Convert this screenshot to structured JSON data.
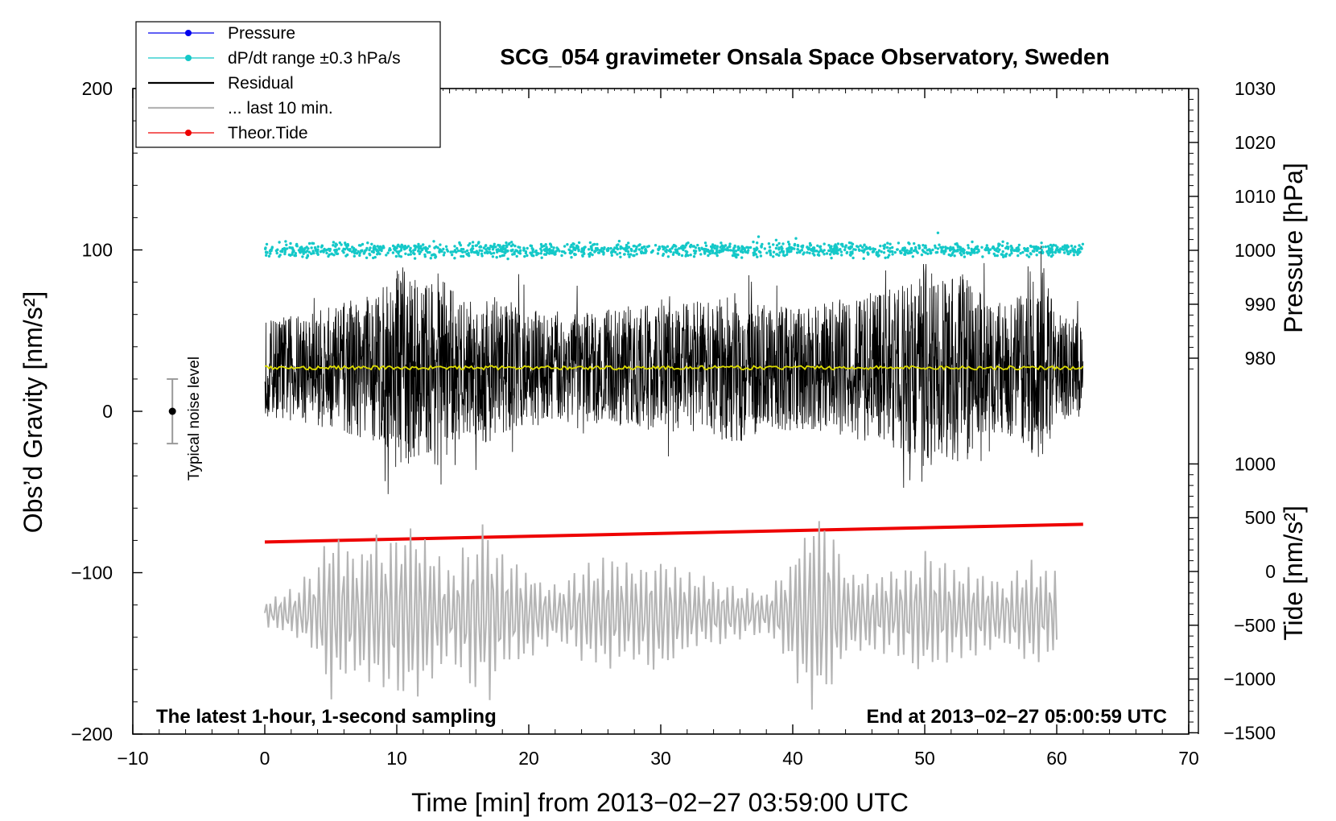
{
  "chart_data": {
    "type": "line",
    "title": "SCG_054 gravimeter Onsala Space Observatory, Sweden",
    "xlabel": "Time [min] from 2013−02−27 03:59:00 UTC",
    "ylabel_left": "Obs’d Gravity [nm/s²]",
    "ylabel_right_top": "Pressure [hPa]",
    "ylabel_right_bottom": "Tide [nm/s²]",
    "xlim": [
      -10,
      70
    ],
    "ylim": [
      -200,
      200
    ],
    "pressure_range": [
      970,
      1030
    ],
    "tide_range": [
      -1500,
      1000
    ],
    "x_ticks": [
      "−10",
      "0",
      "10",
      "20",
      "30",
      "40",
      "50",
      "60",
      "70"
    ],
    "y_ticks": [
      "200",
      "100",
      "0",
      "−100",
      "−200"
    ],
    "pressure_ticks": [
      "1030",
      "1020",
      "1010",
      "1000",
      "990",
      "980"
    ],
    "tide_ticks": [
      "1000",
      "500",
      "0",
      "−500",
      "−1000",
      "−1500"
    ],
    "legend": [
      {
        "name": "Pressure",
        "color": "#0000ee",
        "marker": true
      },
      {
        "name": "dP/dt range ±0.3 hPa/s",
        "color": "#14c8c8",
        "marker": true
      },
      {
        "name": "Residual",
        "color": "#000000",
        "marker": false
      },
      {
        "name": "... last 10 min.",
        "color": "#b4b4b4",
        "marker": false
      },
      {
        "name": "Theor.Tide",
        "color": "#ee0000",
        "marker": true
      }
    ],
    "series": [
      {
        "name": "dP/dt range",
        "color": "#14c8c8",
        "x_range": [
          0,
          62
        ],
        "level": 100,
        "spread": 4
      },
      {
        "name": "Residual",
        "color": "#000000",
        "x_range": [
          0,
          62
        ],
        "mean": 27,
        "envelope_x": [
          0,
          4,
          7,
          9,
          10,
          11,
          12,
          13,
          15,
          17,
          20,
          24,
          28,
          32,
          35,
          36,
          38,
          42,
          44,
          47,
          49,
          50,
          51,
          53,
          55,
          57,
          59,
          60,
          62
        ],
        "envelope_amp": [
          30,
          36,
          44,
          50,
          64,
          60,
          52,
          62,
          42,
          48,
          36,
          34,
          38,
          40,
          44,
          48,
          38,
          40,
          44,
          48,
          56,
          68,
          54,
          60,
          40,
          44,
          60,
          34,
          30
        ]
      },
      {
        "name": "Residual smoothed",
        "color": "#dcdc00",
        "x_range": [
          0,
          62
        ],
        "level": 27
      },
      {
        "name": "... last 10 min.",
        "color": "#b4b4b4",
        "x_range": [
          0,
          60
        ],
        "mean": -125,
        "envelope_x": [
          0,
          2,
          4,
          5,
          7,
          8,
          9,
          10,
          11,
          12,
          13,
          14,
          16,
          17,
          18,
          20,
          22,
          24,
          26,
          28,
          30,
          32,
          34,
          36,
          38,
          40,
          41,
          42,
          43,
          44,
          46,
          48,
          50,
          52,
          54,
          56,
          58,
          59,
          60
        ],
        "envelope_amp": [
          8,
          16,
          30,
          56,
          42,
          55,
          52,
          60,
          58,
          55,
          45,
          30,
          56,
          60,
          40,
          30,
          20,
          30,
          38,
          32,
          40,
          28,
          22,
          18,
          14,
          40,
          62,
          66,
          55,
          30,
          25,
          30,
          42,
          32,
          30,
          22,
          34,
          30,
          28
        ]
      },
      {
        "name": "Theor.Tide",
        "color": "#ee0000",
        "x": [
          0,
          62
        ],
        "y": [
          -81,
          -70
        ]
      }
    ],
    "noise_bar": {
      "label": "Typical noise level",
      "x": -7,
      "center": 0,
      "half_range": 20
    },
    "annotation_left": "The latest 1-hour, 1-second sampling",
    "annotation_right": "End at 2013−02−27 05:00:59 UTC"
  }
}
